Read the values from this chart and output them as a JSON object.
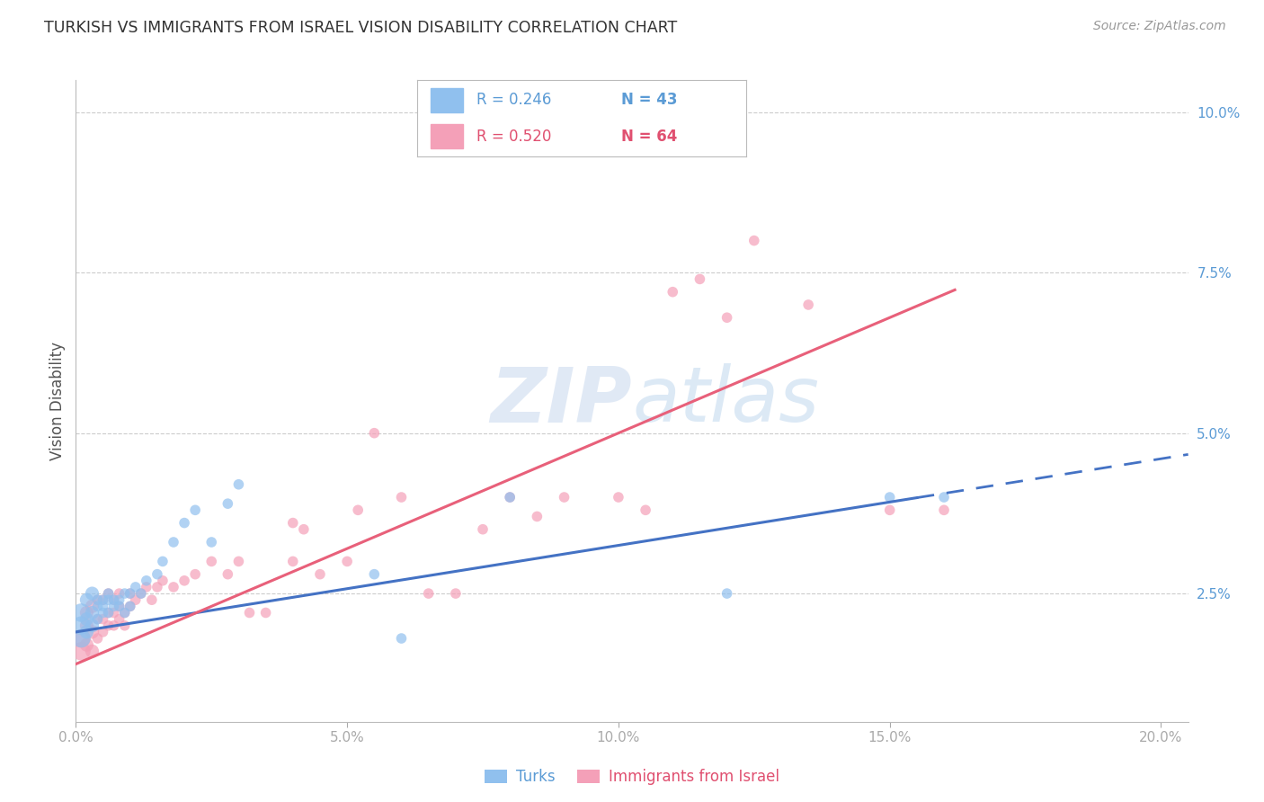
{
  "title": "TURKISH VS IMMIGRANTS FROM ISRAEL VISION DISABILITY CORRELATION CHART",
  "source": "Source: ZipAtlas.com",
  "ylabel": "Vision Disability",
  "xlim": [
    0.0,
    0.205
  ],
  "ylim": [
    0.005,
    0.105
  ],
  "yticks": [
    0.025,
    0.05,
    0.075,
    0.1
  ],
  "ytick_labels": [
    "2.5%",
    "5.0%",
    "7.5%",
    "10.0%"
  ],
  "xticks": [
    0.0,
    0.05,
    0.1,
    0.15,
    0.2
  ],
  "xtick_labels": [
    "0.0%",
    "5.0%",
    "10.0%",
    "15.0%",
    "20.0%"
  ],
  "blue_color": "#90C0EE",
  "pink_color": "#F4A0B8",
  "blue_line_color": "#4472C4",
  "pink_line_color": "#E8607A",
  "axis_color": "#5B9BD5",
  "watermark_color": "#C8D8EE",
  "background_color": "#FFFFFF",
  "grid_color": "#CCCCCC",
  "turks_x": [
    0.001,
    0.001,
    0.001,
    0.002,
    0.002,
    0.002,
    0.003,
    0.003,
    0.003,
    0.004,
    0.004,
    0.004,
    0.005,
    0.005,
    0.005,
    0.006,
    0.006,
    0.006,
    0.007,
    0.007,
    0.008,
    0.008,
    0.009,
    0.009,
    0.01,
    0.01,
    0.011,
    0.012,
    0.013,
    0.015,
    0.016,
    0.018,
    0.02,
    0.022,
    0.025,
    0.028,
    0.03,
    0.055,
    0.06,
    0.08,
    0.12,
    0.15,
    0.16
  ],
  "turks_y": [
    0.022,
    0.02,
    0.018,
    0.024,
    0.021,
    0.019,
    0.025,
    0.022,
    0.02,
    0.023,
    0.021,
    0.024,
    0.024,
    0.022,
    0.023,
    0.024,
    0.022,
    0.025,
    0.023,
    0.024,
    0.024,
    0.023,
    0.025,
    0.022,
    0.025,
    0.023,
    0.026,
    0.025,
    0.027,
    0.028,
    0.03,
    0.033,
    0.036,
    0.038,
    0.033,
    0.039,
    0.042,
    0.028,
    0.018,
    0.04,
    0.025,
    0.04,
    0.04
  ],
  "israel_x": [
    0.001,
    0.001,
    0.002,
    0.002,
    0.002,
    0.003,
    0.003,
    0.003,
    0.004,
    0.004,
    0.004,
    0.005,
    0.005,
    0.005,
    0.006,
    0.006,
    0.006,
    0.007,
    0.007,
    0.007,
    0.008,
    0.008,
    0.008,
    0.009,
    0.009,
    0.01,
    0.01,
    0.011,
    0.012,
    0.013,
    0.014,
    0.015,
    0.016,
    0.018,
    0.02,
    0.022,
    0.025,
    0.028,
    0.03,
    0.032,
    0.035,
    0.04,
    0.04,
    0.042,
    0.045,
    0.05,
    0.052,
    0.055,
    0.06,
    0.065,
    0.07,
    0.075,
    0.08,
    0.085,
    0.09,
    0.1,
    0.105,
    0.11,
    0.115,
    0.12,
    0.125,
    0.135,
    0.15,
    0.16
  ],
  "israel_y": [
    0.018,
    0.016,
    0.02,
    0.017,
    0.022,
    0.019,
    0.016,
    0.023,
    0.021,
    0.018,
    0.024,
    0.021,
    0.024,
    0.019,
    0.022,
    0.02,
    0.025,
    0.022,
    0.024,
    0.02,
    0.023,
    0.021,
    0.025,
    0.022,
    0.02,
    0.023,
    0.025,
    0.024,
    0.025,
    0.026,
    0.024,
    0.026,
    0.027,
    0.026,
    0.027,
    0.028,
    0.03,
    0.028,
    0.03,
    0.022,
    0.022,
    0.036,
    0.03,
    0.035,
    0.028,
    0.03,
    0.038,
    0.05,
    0.04,
    0.025,
    0.025,
    0.035,
    0.04,
    0.037,
    0.04,
    0.04,
    0.038,
    0.072,
    0.074,
    0.068,
    0.08,
    0.07,
    0.038,
    0.038
  ],
  "blue_intercept": 0.019,
  "blue_slope": 0.135,
  "pink_intercept": 0.014,
  "pink_slope": 0.36,
  "blue_solid_max": 0.155,
  "blue_dashed_max": 0.205
}
